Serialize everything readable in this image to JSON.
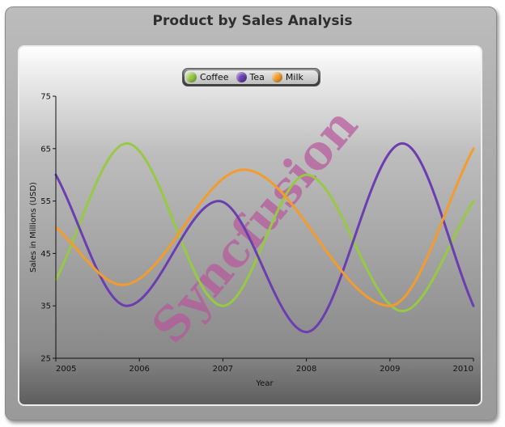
{
  "header": {
    "title": "Product by Sales Analysis"
  },
  "watermark": {
    "text": "Syncfusion",
    "color": "#b7559a"
  },
  "chart_data": {
    "type": "line",
    "title": "Product by Sales Analysis",
    "xlabel": "Year",
    "ylabel": "Sales in Millions (USD)",
    "x": [
      2005,
      2006,
      2007,
      2008,
      2009,
      2010
    ],
    "xlim": [
      2005,
      2010
    ],
    "ylim": [
      25,
      75
    ],
    "y_ticks": [
      25,
      35,
      45,
      55,
      65,
      75
    ],
    "x_ticks": [
      "2005",
      "2006",
      "2007",
      "2008",
      "2009",
      "2010"
    ],
    "grid": false,
    "legend_position": "top-center",
    "series": [
      {
        "name": "Coffee",
        "color": "#97c944",
        "points": [
          [
            2005,
            40
          ],
          [
            2005.85,
            66
          ],
          [
            2007,
            35
          ],
          [
            2008,
            60
          ],
          [
            2009.15,
            34
          ],
          [
            2010,
            55
          ]
        ]
      },
      {
        "name": "Tea",
        "color": "#6a3eb0",
        "points": [
          [
            2005,
            60
          ],
          [
            2005.85,
            35
          ],
          [
            2006.95,
            55
          ],
          [
            2008,
            30
          ],
          [
            2009.15,
            66
          ],
          [
            2010,
            35
          ]
        ]
      },
      {
        "name": "Milk",
        "color": "#f39c2e",
        "points": [
          [
            2005,
            50
          ],
          [
            2005.8,
            39
          ],
          [
            2007.25,
            61
          ],
          [
            2009,
            35
          ],
          [
            2010,
            65
          ]
        ]
      }
    ]
  }
}
